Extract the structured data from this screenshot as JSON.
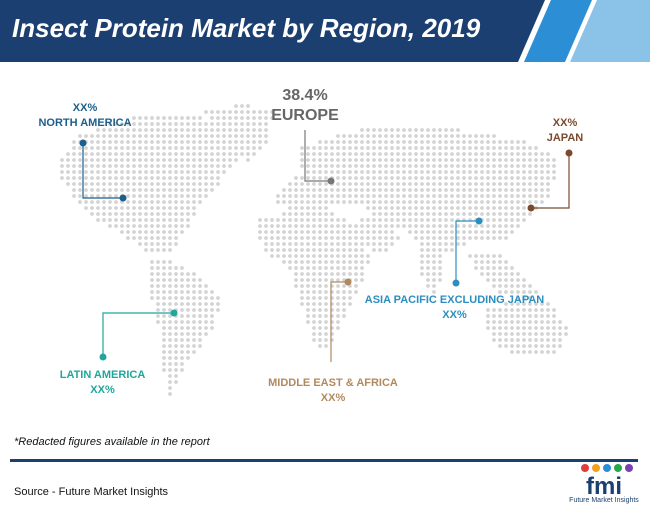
{
  "title": "Insect Protein Market by Region, 2019",
  "regions": [
    {
      "id": "north-america",
      "name": "NORTH AMERICA",
      "value": "XX%",
      "color": "#1c5e8c"
    },
    {
      "id": "europe",
      "name": "EUROPE",
      "value": "38.4%",
      "color": "#777777"
    },
    {
      "id": "japan",
      "name": "JAPAN",
      "value": "XX%",
      "color": "#7a4a2e"
    },
    {
      "id": "asia-pacific",
      "name": "ASIA PACIFIC EXCLUDING JAPAN",
      "value": "XX%",
      "color": "#2a8fc0"
    },
    {
      "id": "latin-america",
      "name": "LATIN AMERICA",
      "value": "XX%",
      "color": "#1ea79a"
    },
    {
      "id": "mea",
      "name": "MIDDLE EAST & AFRICA",
      "value": "XX%",
      "color": "#b08a5e"
    }
  ],
  "note": "*Redacted figures available in the report",
  "source": "Source - Future Market Insights",
  "logo": {
    "text": "fmi",
    "subtext": "Future Market Insights"
  },
  "colors": {
    "banner": "#1b3f70",
    "banner_accent": "#2c8fd6",
    "map_dots": "#d4d4d4"
  }
}
